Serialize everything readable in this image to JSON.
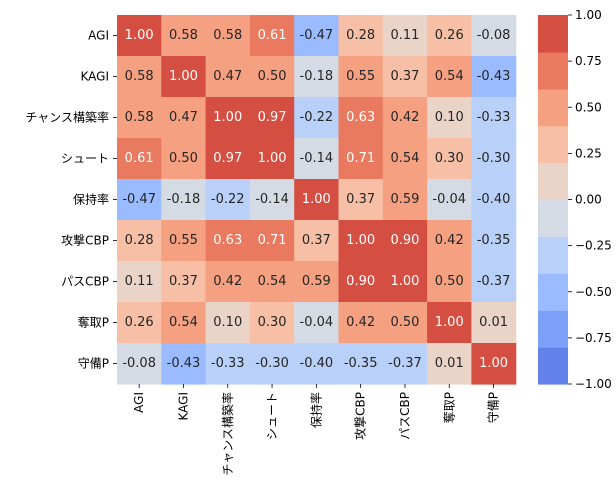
{
  "chart_data": {
    "type": "heatmap",
    "title": "",
    "xlabel": "",
    "ylabel": "",
    "labels": [
      "AGI",
      "KAGI",
      "チャンス構築率",
      "シュート",
      "保持率",
      "攻撃CBP",
      "パスCBP",
      "奪取P",
      "守備P"
    ],
    "values": [
      [
        1.0,
        0.58,
        0.58,
        0.61,
        -0.47,
        0.28,
        0.11,
        0.26,
        -0.08
      ],
      [
        0.58,
        1.0,
        0.47,
        0.5,
        -0.18,
        0.55,
        0.37,
        0.54,
        -0.43
      ],
      [
        0.58,
        0.47,
        1.0,
        0.97,
        -0.22,
        0.63,
        0.42,
        0.1,
        -0.33
      ],
      [
        0.61,
        0.5,
        0.97,
        1.0,
        -0.14,
        0.71,
        0.54,
        0.3,
        -0.3
      ],
      [
        -0.47,
        -0.18,
        -0.22,
        -0.14,
        1.0,
        0.37,
        0.59,
        -0.04,
        -0.4
      ],
      [
        0.28,
        0.55,
        0.63,
        0.71,
        0.37,
        1.0,
        0.9,
        0.42,
        -0.35
      ],
      [
        0.11,
        0.37,
        0.42,
        0.54,
        0.59,
        0.9,
        1.0,
        0.5,
        -0.37
      ],
      [
        0.26,
        0.54,
        0.1,
        0.3,
        -0.04,
        0.42,
        0.5,
        1.0,
        0.01
      ],
      [
        -0.08,
        -0.43,
        -0.33,
        -0.3,
        -0.4,
        -0.35,
        -0.37,
        0.01,
        1.0
      ]
    ],
    "display_values": [
      [
        "1.00",
        "0.58",
        "0.58",
        "0.61",
        "-0.47",
        "0.28",
        "0.11",
        "0.26",
        "-0.08"
      ],
      [
        "0.58",
        "1.00",
        "0.47",
        "0.50",
        "-0.18",
        "0.55",
        "0.37",
        "0.54",
        "-0.43"
      ],
      [
        "0.58",
        "0.47",
        "1.00",
        "0.97",
        "-0.22",
        "0.63",
        "0.42",
        "0.10",
        "-0.33"
      ],
      [
        "0.61",
        "0.50",
        "0.97",
        "1.00",
        "-0.14",
        "0.71",
        "0.54",
        "0.30",
        "-0.30"
      ],
      [
        "-0.47",
        "-0.18",
        "-0.22",
        "-0.14",
        "1.00",
        "0.37",
        "0.59",
        "-0.04",
        "-0.40"
      ],
      [
        "0.28",
        "0.55",
        "0.63",
        "0.71",
        "0.37",
        "1.00",
        "0.90",
        "0.42",
        "-0.35"
      ],
      [
        "0.11",
        "0.37",
        "0.42",
        "0.54",
        "0.59",
        "0.90",
        "1.00",
        "0.50",
        "-0.37"
      ],
      [
        "0.26",
        "0.54",
        "0.10",
        "0.30",
        "-0.04",
        "0.42",
        "0.50",
        "1.00",
        "0.01"
      ],
      [
        "-0.08",
        "-0.43",
        "-0.33",
        "-0.30",
        "-0.40",
        "-0.35",
        "-0.37",
        "0.01",
        "1.00"
      ]
    ],
    "vmin": -1.0,
    "vmax": 1.0,
    "colormap": {
      "name": "coolwarm",
      "discrete_levels": 10,
      "colors": [
        "#6281ea",
        "#7da0f9",
        "#9abbff",
        "#b9d0f9",
        "#d5dbe5",
        "#ead4c8",
        "#f6bfa6",
        "#f5a081",
        "#e97a5f",
        "#d44e41"
      ]
    },
    "colorbar": {
      "ticks": [
        -1.0,
        -0.75,
        -0.5,
        -0.25,
        0.0,
        0.25,
        0.5,
        0.75,
        1.0
      ],
      "tick_labels": [
        "−1.00",
        "−0.75",
        "−0.50",
        "−0.25",
        "0.00",
        "0.25",
        "0.50",
        "0.75",
        "1.00"
      ]
    },
    "text_colors": {
      "dark_background": "#ffffff",
      "light_background": "#262626"
    }
  }
}
